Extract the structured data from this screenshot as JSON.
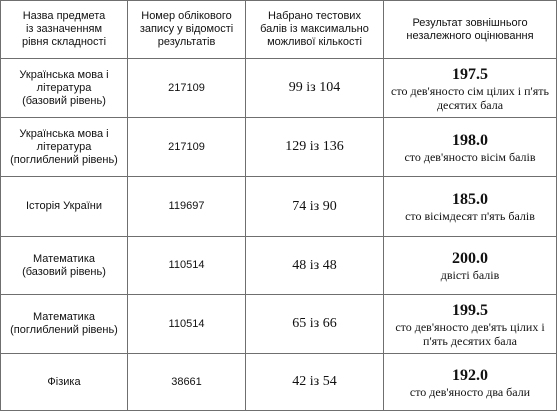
{
  "headers": {
    "subject": [
      "Назва предмета",
      "із зазначенням",
      "рівня складності"
    ],
    "record": [
      "Номер облікового",
      "запису у відомості",
      "результатів"
    ],
    "score": [
      "Набрано тестових",
      "балів із максимально",
      "можливої кількості"
    ],
    "result": [
      "Результат зовнішнього",
      "незалежного оцінювання"
    ]
  },
  "rows": [
    {
      "subject": [
        "Українська мова і",
        "література",
        "(базовий рівень)"
      ],
      "record": "217109",
      "score": "99 із 104",
      "result_value": "197.5",
      "result_words": [
        "сто дев'яносто сім цілих і п'ять",
        "десятих бала"
      ]
    },
    {
      "subject": [
        "Українська мова і",
        "література",
        "(поглиблений рівень)"
      ],
      "record": "217109",
      "score": "129 із 136",
      "result_value": "198.0",
      "result_words": [
        "сто дев'яносто вісім балів"
      ]
    },
    {
      "subject": [
        "Історія України"
      ],
      "record": "119697",
      "score": "74 із 90",
      "result_value": "185.0",
      "result_words": [
        "сто вісімдесят п'ять балів"
      ]
    },
    {
      "subject": [
        "Математика",
        "(базовий рівень)"
      ],
      "record": "110514",
      "score": "48 із 48",
      "result_value": "200.0",
      "result_words": [
        "двісті балів"
      ]
    },
    {
      "subject": [
        "Математика",
        "(поглиблений рівень)"
      ],
      "record": "110514",
      "score": "65 із 66",
      "result_value": "199.5",
      "result_words": [
        "сто дев'яносто дев'ять цілих і",
        "п'ять десятих бала"
      ]
    },
    {
      "subject": [
        "Фізика"
      ],
      "record": "38661",
      "score": "42 із 54",
      "result_value": "192.0",
      "result_words": [
        "сто дев'яносто два бали"
      ]
    }
  ]
}
